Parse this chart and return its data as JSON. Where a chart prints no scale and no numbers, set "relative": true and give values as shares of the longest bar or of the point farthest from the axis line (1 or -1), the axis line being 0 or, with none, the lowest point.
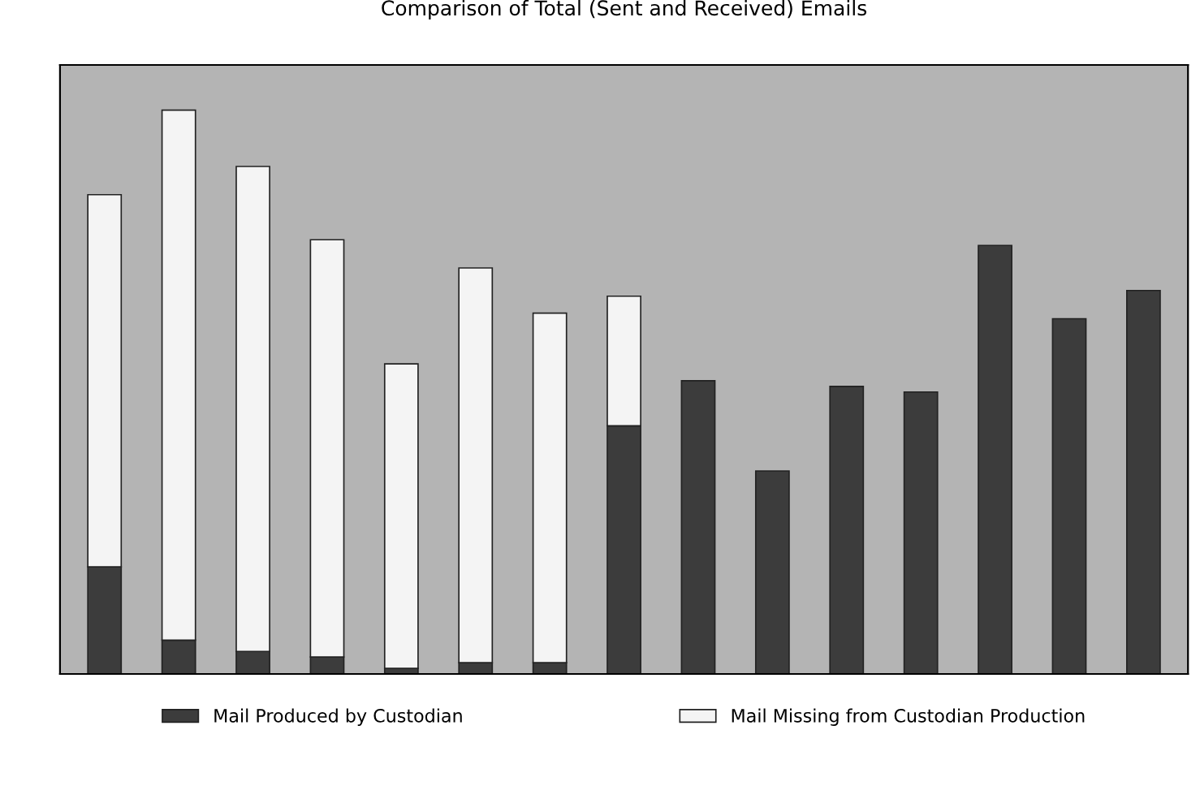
{
  "chart_data": {
    "type": "bar",
    "title": "Comparison of Total (Sent and Received) Emails",
    "relative": true,
    "stacked": true,
    "legend": "bottom",
    "categories": [
      null,
      null,
      null,
      null,
      null,
      null,
      null,
      null,
      null,
      null,
      null,
      null,
      null,
      null,
      null
    ],
    "series": [
      {
        "name": "Mail Produced by Custodian",
        "color": "#3c3c3c",
        "values": [
          0.19,
          0.06,
          0.04,
          0.03,
          0.01,
          0.02,
          0.02,
          0.44,
          0.52,
          0.36,
          0.51,
          0.5,
          0.76,
          0.63,
          0.68
        ]
      },
      {
        "name": "Mail Missing from Custodian Production",
        "color": "#f4f4f4",
        "values": [
          0.66,
          0.94,
          0.86,
          0.74,
          0.54,
          0.7,
          0.62,
          0.23,
          null,
          null,
          null,
          null,
          null,
          null,
          null
        ]
      }
    ]
  }
}
